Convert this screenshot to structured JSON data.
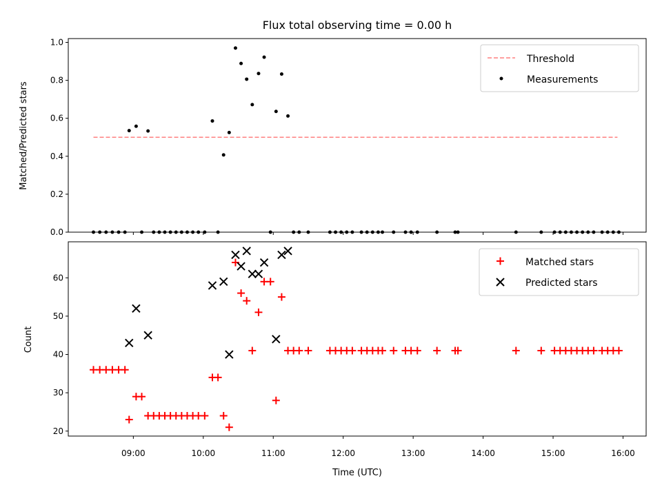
{
  "chart_data": [
    {
      "type": "scatter",
      "title": "Flux total observing time = 0.00 h",
      "xlabel": "",
      "ylabel": "Matched/Predicted stars",
      "xlim": [
        8.07,
        16.33
      ],
      "ylim": [
        0.0,
        1.02
      ],
      "yticks": [
        0.0,
        0.2,
        0.4,
        0.6,
        0.8,
        1.0
      ],
      "ytick_labels": [
        "0.0",
        "0.2",
        "0.4",
        "0.6",
        "0.8",
        "1.0"
      ],
      "threshold": {
        "name": "Threshold",
        "value": 0.5,
        "x_range": [
          8.43,
          15.92
        ],
        "color": "#ff7f7f"
      },
      "series": [
        {
          "name": "Measurements",
          "color": "#000000",
          "x": [
            8.43,
            8.52,
            8.61,
            8.7,
            8.79,
            8.88,
            8.94,
            9.04,
            9.12,
            9.21,
            9.29,
            9.37,
            9.45,
            9.53,
            9.61,
            9.69,
            9.77,
            9.85,
            9.93,
            10.02,
            10.13,
            10.21,
            10.29,
            10.37,
            10.46,
            10.54,
            10.62,
            10.7,
            10.79,
            10.87,
            10.96,
            11.04,
            11.12,
            11.21,
            11.29,
            11.37,
            11.5,
            11.81,
            11.89,
            11.97,
            12.05,
            12.13,
            12.26,
            12.34,
            12.42,
            12.5,
            12.56,
            12.72,
            12.89,
            12.97,
            13.06,
            13.34,
            13.6,
            13.64,
            14.47,
            14.83,
            15.02,
            15.1,
            15.18,
            15.26,
            15.34,
            15.42,
            15.5,
            15.58,
            15.7,
            15.78,
            15.86,
            15.94
          ],
          "y": [
            0.0,
            0.0,
            0.0,
            0.0,
            0.0,
            0.0,
            0.535,
            0.558,
            0.0,
            0.533,
            0.0,
            0.0,
            0.0,
            0.0,
            0.0,
            0.0,
            0.0,
            0.0,
            0.0,
            0.0,
            0.586,
            0.0,
            0.407,
            0.525,
            0.97,
            0.889,
            0.806,
            0.672,
            0.836,
            0.922,
            0.0,
            0.636,
            0.833,
            0.612,
            0.0,
            0.0,
            0.0,
            0.0,
            0.0,
            0.0,
            0.0,
            0.0,
            0.0,
            0.0,
            0.0,
            0.0,
            0.0,
            0.0,
            0.0,
            0.0,
            0.0,
            0.0,
            0.0,
            0.0,
            0.0,
            0.0,
            0.0,
            0.0,
            0.0,
            0.0,
            0.0,
            0.0,
            0.0,
            0.0,
            0.0,
            0.0,
            0.0,
            0.0
          ]
        }
      ],
      "legend": {
        "position": "upper right",
        "entries": [
          "Threshold",
          "Measurements"
        ]
      }
    },
    {
      "type": "scatter",
      "title": "",
      "xlabel": "Time (UTC)",
      "ylabel": "Count",
      "xlim": [
        8.07,
        16.33
      ],
      "ylim": [
        18.7,
        69.4
      ],
      "yticks": [
        20,
        30,
        40,
        50,
        60
      ],
      "ytick_labels": [
        "20",
        "30",
        "40",
        "50",
        "60"
      ],
      "xticks": [
        9,
        10,
        11,
        12,
        13,
        14,
        15,
        16
      ],
      "xtick_labels": [
        "09:00",
        "10:00",
        "11:00",
        "12:00",
        "13:00",
        "14:00",
        "15:00",
        "16:00"
      ],
      "series": [
        {
          "name": "Matched stars",
          "marker": "+",
          "color": "#ff0000",
          "x": [
            8.43,
            8.52,
            8.61,
            8.7,
            8.79,
            8.88,
            8.94,
            9.04,
            9.12,
            9.21,
            9.29,
            9.37,
            9.45,
            9.53,
            9.61,
            9.69,
            9.77,
            9.85,
            9.93,
            10.02,
            10.13,
            10.21,
            10.29,
            10.37,
            10.46,
            10.54,
            10.62,
            10.7,
            10.79,
            10.87,
            10.96,
            11.04,
            11.12,
            11.21,
            11.29,
            11.37,
            11.5,
            11.81,
            11.89,
            11.97,
            12.05,
            12.13,
            12.26,
            12.34,
            12.42,
            12.5,
            12.56,
            12.72,
            12.89,
            12.97,
            13.06,
            13.34,
            13.6,
            13.64,
            14.47,
            14.83,
            15.02,
            15.1,
            15.18,
            15.26,
            15.34,
            15.42,
            15.5,
            15.58,
            15.7,
            15.78,
            15.86,
            15.94
          ],
          "y": [
            36,
            36,
            36,
            36,
            36,
            36,
            23,
            29,
            29,
            24,
            24,
            24,
            24,
            24,
            24,
            24,
            24,
            24,
            24,
            24,
            34,
            34,
            24,
            21,
            64,
            56,
            54,
            41,
            51,
            59,
            59,
            28,
            55,
            41,
            41,
            41,
            41,
            41,
            41,
            41,
            41,
            41,
            41,
            41,
            41,
            41,
            41,
            41,
            41,
            41,
            41,
            41,
            41,
            41,
            41,
            41,
            41,
            41,
            41,
            41,
            41,
            41,
            41,
            41,
            41,
            41,
            41,
            41
          ]
        },
        {
          "name": "Predicted stars",
          "marker": "x",
          "color": "#000000",
          "x": [
            8.94,
            9.04,
            9.21,
            10.13,
            10.29,
            10.37,
            10.46,
            10.54,
            10.62,
            10.7,
            10.79,
            10.87,
            11.04,
            11.12,
            11.21
          ],
          "y": [
            43,
            52,
            45,
            58,
            59,
            40,
            66,
            63,
            67,
            61,
            61,
            64,
            44,
            66,
            67
          ]
        }
      ],
      "legend": {
        "position": "upper right",
        "entries": [
          "Matched stars",
          "Predicted stars"
        ]
      }
    }
  ]
}
